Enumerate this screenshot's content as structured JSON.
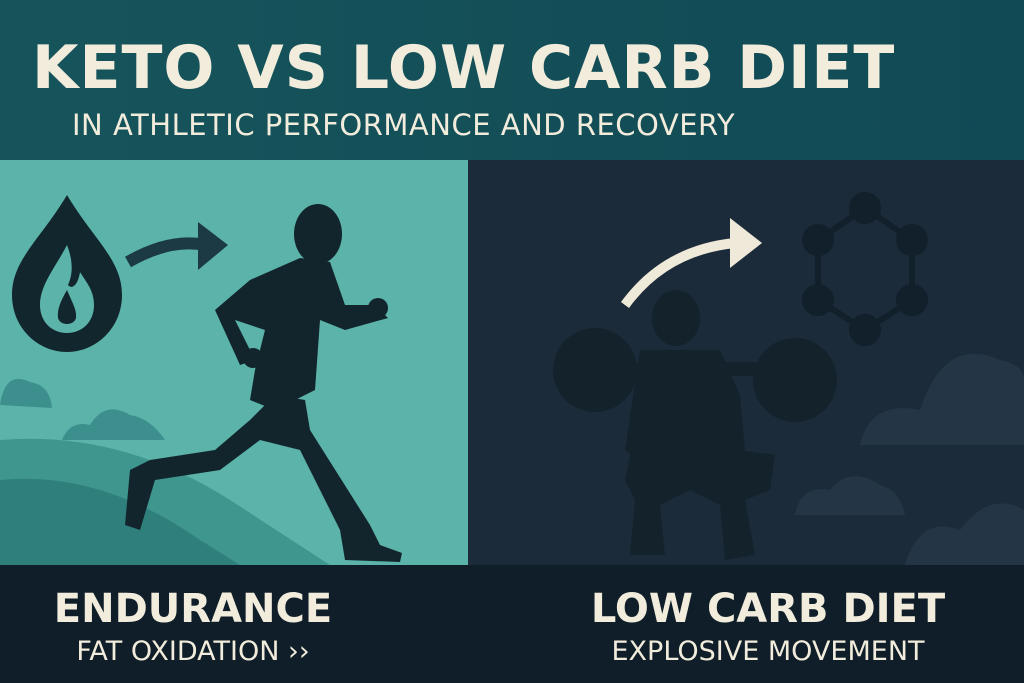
{
  "header": {
    "title": "KETO VS LOW CARB DIET",
    "subtitle": "IN ATHLETIC PERFORMANCE AND RECOVERY"
  },
  "panels": [
    {
      "label": "ENDURANCE",
      "caption": "FAT OXIDATION ››"
    },
    {
      "label": "LOW CARB DIET",
      "caption": "EXPLOSIVE MOVEMENT"
    }
  ]
}
